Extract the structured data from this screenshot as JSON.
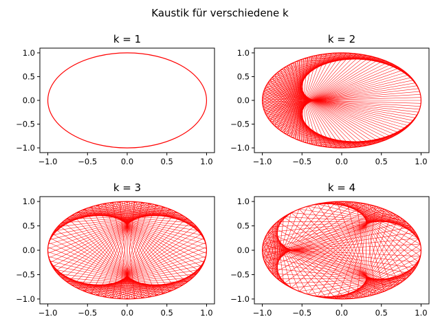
{
  "figure": {
    "suptitle": "Kaustik für verschiedene k",
    "line_color": "#ff0000"
  },
  "chart_data": [
    {
      "type": "line",
      "title": "k = 1",
      "k": 1,
      "chord_count": 200,
      "xlim": [
        -1.1,
        1.1
      ],
      "ylim": [
        -1.1,
        1.1
      ],
      "xticks": [
        -1.0,
        -0.5,
        0.0,
        0.5,
        1.0
      ],
      "yticks": [
        -1.0,
        -0.5,
        0.0,
        0.5,
        1.0
      ],
      "xtick_labels": [
        "−1.0",
        "−0.5",
        "0.0",
        "0.5",
        "1.0"
      ],
      "ytick_labels": [
        "−1.0",
        "−0.5",
        "0.0",
        "0.5",
        "1.0"
      ],
      "grid": false
    },
    {
      "type": "line",
      "title": "k = 2",
      "k": 2,
      "chord_count": 200,
      "xlim": [
        -1.1,
        1.1
      ],
      "ylim": [
        -1.1,
        1.1
      ],
      "xticks": [
        -1.0,
        -0.5,
        0.0,
        0.5,
        1.0
      ],
      "yticks": [
        -1.0,
        -0.5,
        0.0,
        0.5,
        1.0
      ],
      "xtick_labels": [
        "−1.0",
        "−0.5",
        "0.0",
        "0.5",
        "1.0"
      ],
      "ytick_labels": [
        "−1.0",
        "−0.5",
        "0.0",
        "0.5",
        "1.0"
      ],
      "grid": false
    },
    {
      "type": "line",
      "title": "k = 3",
      "k": 3,
      "chord_count": 200,
      "xlim": [
        -1.1,
        1.1
      ],
      "ylim": [
        -1.1,
        1.1
      ],
      "xticks": [
        -1.0,
        -0.5,
        0.0,
        0.5,
        1.0
      ],
      "yticks": [
        -1.0,
        -0.5,
        0.0,
        0.5,
        1.0
      ],
      "xtick_labels": [
        "−1.0",
        "−0.5",
        "0.0",
        "0.5",
        "1.0"
      ],
      "ytick_labels": [
        "−1.0",
        "−0.5",
        "0.0",
        "0.5",
        "1.0"
      ],
      "grid": false
    },
    {
      "type": "line",
      "title": "k = 4",
      "k": 4,
      "chord_count": 200,
      "xlim": [
        -1.1,
        1.1
      ],
      "ylim": [
        -1.1,
        1.1
      ],
      "xticks": [
        -1.0,
        -0.5,
        0.0,
        0.5,
        1.0
      ],
      "yticks": [
        -1.0,
        -0.5,
        0.0,
        0.5,
        1.0
      ],
      "xtick_labels": [
        "−1.0",
        "−0.5",
        "0.0",
        "0.5",
        "1.0"
      ],
      "ytick_labels": [
        "−1.0",
        "−0.5",
        "0.0",
        "0.5",
        "1.0"
      ],
      "grid": false
    }
  ]
}
